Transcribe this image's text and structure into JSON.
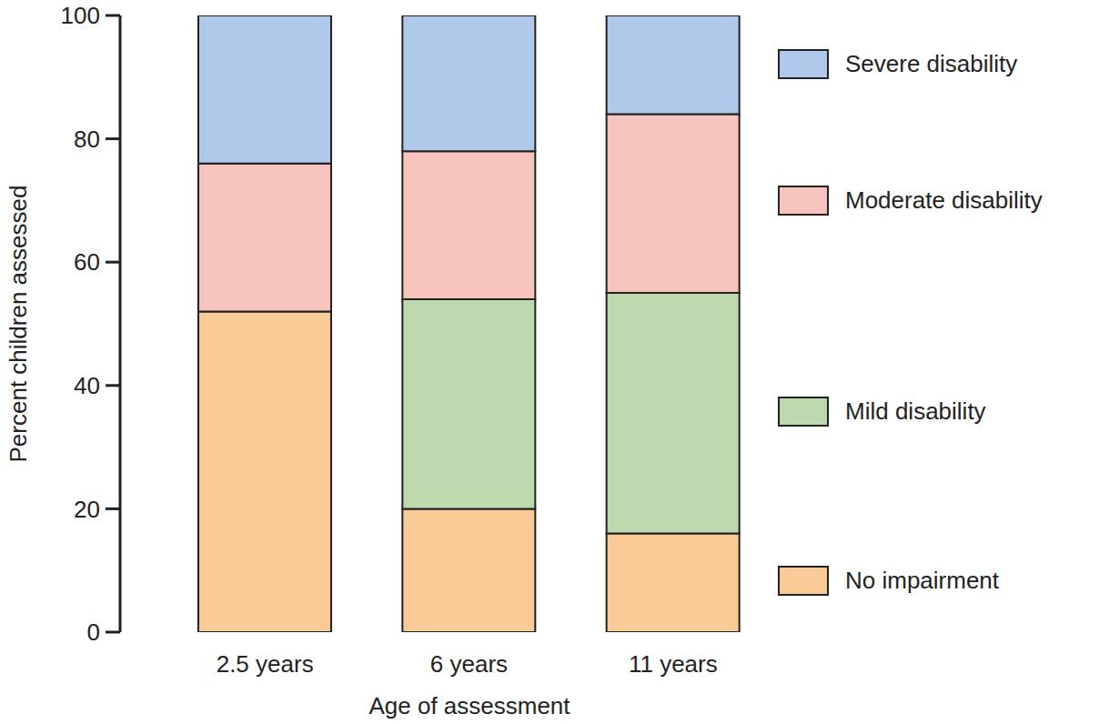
{
  "chart_data": {
    "type": "bar",
    "stacked": true,
    "x_label": "Age of assessment",
    "y_label": "Percent children assessed",
    "categories": [
      "2.5 years",
      "6 years",
      "11 years"
    ],
    "series": [
      {
        "name": "No impairment",
        "color": "#f8cb96",
        "values": [
          52,
          20,
          16
        ]
      },
      {
        "name": "Mild disability",
        "color": "#bdd8ad",
        "values": [
          0,
          34,
          39
        ]
      },
      {
        "name": "Moderate disability",
        "color": "#f6c4bd",
        "values": [
          24,
          24,
          29
        ]
      },
      {
        "name": "Severe disability",
        "color": "#b0c8e9",
        "values": [
          24,
          22,
          16
        ]
      }
    ],
    "ylim": [
      0,
      100
    ],
    "yticks": [
      0,
      20,
      40,
      60,
      80,
      100
    ],
    "grid": false,
    "legend": "right"
  }
}
